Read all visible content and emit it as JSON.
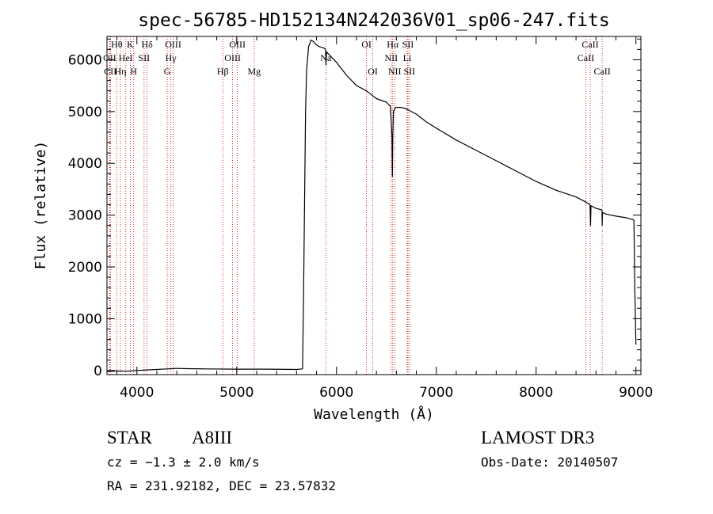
{
  "chart_data": {
    "type": "line",
    "title": "spec-56785-HD152134N242036V01_sp06-247.fits",
    "xlabel": "Wavelength (Å)",
    "ylabel": "Flux (relative)",
    "xlim": [
      3700,
      9050
    ],
    "ylim": [
      -80,
      6450
    ],
    "xticks": [
      4000,
      5000,
      6000,
      7000,
      8000,
      9000
    ],
    "yticks": [
      0,
      1000,
      2000,
      3000,
      4000,
      5000,
      6000
    ],
    "grid": false,
    "series": [
      {
        "name": "flux",
        "x": [
          3700,
          3800,
          3900,
          4000,
          4100,
          4200,
          4300,
          4400,
          4500,
          4700,
          5000,
          5300,
          5600,
          5660,
          5670,
          5690,
          5700,
          5720,
          5745,
          5770,
          5790,
          5830,
          5870,
          5890,
          5895,
          5900,
          5950,
          6000,
          6100,
          6200,
          6300,
          6400,
          6500,
          6540,
          6556,
          6560,
          6564,
          6570,
          6590,
          6650,
          6700,
          6800,
          6900,
          7000,
          7200,
          7400,
          7600,
          7800,
          8000,
          8200,
          8400,
          8500,
          8540,
          8545,
          8550,
          8600,
          8660,
          8662,
          8665,
          8700,
          8800,
          8900,
          8960,
          8980,
          8990,
          9000
        ],
        "y": [
          -20,
          -10,
          -15,
          0,
          10,
          20,
          30,
          40,
          35,
          30,
          25,
          25,
          20,
          30,
          1500,
          5000,
          5800,
          6250,
          6380,
          6350,
          6300,
          6250,
          6230,
          6200,
          5900,
          6150,
          6050,
          5950,
          5700,
          5500,
          5400,
          5250,
          5180,
          5100,
          4500,
          3750,
          4500,
          5000,
          5080,
          5080,
          5050,
          4950,
          4800,
          4680,
          4450,
          4250,
          4050,
          3850,
          3650,
          3480,
          3350,
          3250,
          3200,
          2800,
          3180,
          3130,
          3100,
          2800,
          3050,
          3020,
          2980,
          2950,
          2920,
          2900,
          1500,
          500
        ]
      }
    ],
    "lines": [
      {
        "label": "Hθ",
        "x": 3798,
        "row": 1
      },
      {
        "label": "OII",
        "x": 3727,
        "row": 2
      },
      {
        "label": "CII",
        "x": 3734,
        "row": 3
      },
      {
        "label": "Hη",
        "x": 3835,
        "row": 3
      },
      {
        "label": "K",
        "x": 3934,
        "row": 1
      },
      {
        "label": "HeI",
        "x": 3889,
        "row": 2
      },
      {
        "label": "H",
        "x": 3968,
        "row": 3
      },
      {
        "label": "SII",
        "x": 4072,
        "row": 2
      },
      {
        "label": "Hδ",
        "x": 4102,
        "row": 1
      },
      {
        "label": "OIII",
        "x": 4363,
        "row": 1
      },
      {
        "label": "Hγ",
        "x": 4340,
        "row": 2
      },
      {
        "label": "G",
        "x": 4304,
        "row": 3
      },
      {
        "label": "OIII",
        "x": 5007,
        "row": 1
      },
      {
        "label": "OIII",
        "x": 4959,
        "row": 2
      },
      {
        "label": "Hβ",
        "x": 4861,
        "row": 3
      },
      {
        "label": "Mg",
        "x": 5175,
        "row": 3
      },
      {
        "label": "Na",
        "x": 5893,
        "row": 2
      },
      {
        "label": "OI",
        "x": 6300,
        "row": 1
      },
      {
        "label": "OI",
        "x": 6364,
        "row": 3
      },
      {
        "label": "Hα",
        "x": 6563,
        "row": 1
      },
      {
        "label": "NII",
        "x": 6548,
        "row": 2
      },
      {
        "label": "NII",
        "x": 6583,
        "row": 3
      },
      {
        "label": "SII",
        "x": 6716,
        "row": 1
      },
      {
        "label": "Li",
        "x": 6708,
        "row": 2
      },
      {
        "label": "SII",
        "x": 6731,
        "row": 3
      },
      {
        "label": "CaII",
        "x": 8542,
        "row": 1
      },
      {
        "label": "CaII",
        "x": 8498,
        "row": 2
      },
      {
        "label": "CaII",
        "x": 8662,
        "row": 3
      }
    ]
  },
  "info": {
    "object_type": "STAR",
    "subclass": "A8III",
    "survey": "LAMOST DR3",
    "cz": "cz = −1.3 ± 2.0 km/s",
    "obs_date": "Obs-Date: 20140507",
    "coords": "RA = 231.92182, DEC =  23.57832"
  },
  "colors": {
    "spectrum": "#000000",
    "line_marker": "#c00000",
    "axis": "#000000",
    "background": "#ffffff"
  }
}
